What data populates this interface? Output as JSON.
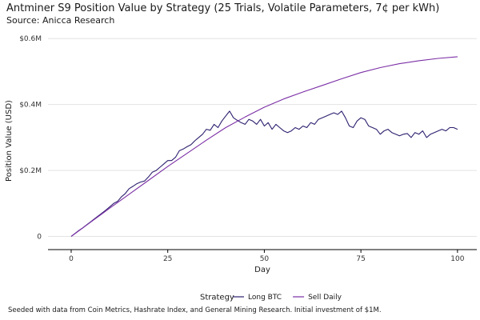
{
  "chart_data": {
    "type": "line",
    "title": "Antminer S9 Position Value by Strategy (25 Trials, Volatile Parameters, 7¢ per kWh)",
    "subtitle": "Source: Anicca Research",
    "caption": "Seeded with data from Coin Metrics, Hashrate Index, and General Mining Research. Initial investment of $1M.",
    "xlabel": "Day",
    "ylabel": "Position Value (USD)",
    "xlim": [
      -6,
      105
    ],
    "ylim": [
      -0.04,
      0.62
    ],
    "x_ticks": [
      0,
      25,
      50,
      75,
      100
    ],
    "x_tick_labels": [
      "0",
      "25",
      "50",
      "75",
      "100"
    ],
    "y_ticks": [
      0,
      0.2,
      0.4,
      0.6
    ],
    "y_tick_labels": [
      "0",
      "$0.2M",
      "$0.4M",
      "$0.6M"
    ],
    "grid": "horizontal",
    "legend_position": "bottom",
    "legend_title": "Strategy",
    "series": [
      {
        "name": "Long BTC",
        "color": "#2c1f6e",
        "x": [
          0,
          1,
          2,
          3,
          4,
          5,
          6,
          7,
          8,
          9,
          10,
          11,
          12,
          13,
          14,
          15,
          16,
          17,
          18,
          19,
          20,
          21,
          22,
          23,
          24,
          25,
          26,
          27,
          28,
          29,
          30,
          31,
          32,
          33,
          34,
          35,
          36,
          37,
          38,
          39,
          40,
          41,
          42,
          43,
          44,
          45,
          46,
          47,
          48,
          49,
          50,
          51,
          52,
          53,
          54,
          55,
          56,
          57,
          58,
          59,
          60,
          61,
          62,
          63,
          64,
          65,
          66,
          67,
          68,
          69,
          70,
          71,
          72,
          73,
          74,
          75,
          76,
          77,
          78,
          79,
          80,
          81,
          82,
          83,
          84,
          85,
          86,
          87,
          88,
          89,
          90,
          91,
          92,
          93,
          94,
          95,
          96,
          97,
          98,
          99,
          100
        ],
        "y": [
          0.0,
          0.009,
          0.018,
          0.026,
          0.035,
          0.044,
          0.053,
          0.062,
          0.071,
          0.08,
          0.09,
          0.1,
          0.106,
          0.12,
          0.13,
          0.145,
          0.152,
          0.16,
          0.165,
          0.168,
          0.18,
          0.195,
          0.2,
          0.21,
          0.22,
          0.23,
          0.23,
          0.24,
          0.26,
          0.265,
          0.272,
          0.278,
          0.29,
          0.3,
          0.31,
          0.325,
          0.322,
          0.34,
          0.33,
          0.35,
          0.365,
          0.38,
          0.36,
          0.352,
          0.345,
          0.34,
          0.355,
          0.35,
          0.34,
          0.355,
          0.335,
          0.345,
          0.325,
          0.34,
          0.33,
          0.32,
          0.315,
          0.32,
          0.33,
          0.325,
          0.335,
          0.33,
          0.345,
          0.34,
          0.355,
          0.36,
          0.365,
          0.37,
          0.375,
          0.37,
          0.38,
          0.36,
          0.335,
          0.33,
          0.35,
          0.36,
          0.355,
          0.335,
          0.33,
          0.325,
          0.31,
          0.32,
          0.325,
          0.315,
          0.31,
          0.305,
          0.31,
          0.312,
          0.3,
          0.315,
          0.31,
          0.32,
          0.3,
          0.31,
          0.315,
          0.32,
          0.325,
          0.32,
          0.33,
          0.33,
          0.325
        ]
      },
      {
        "name": "Sell Daily",
        "color": "#7b2fa6",
        "x": [
          0,
          5,
          10,
          15,
          20,
          25,
          30,
          35,
          40,
          45,
          50,
          55,
          60,
          65,
          70,
          75,
          80,
          85,
          90,
          95,
          100
        ],
        "y": [
          0.0,
          0.043,
          0.086,
          0.128,
          0.17,
          0.212,
          0.252,
          0.292,
          0.33,
          0.362,
          0.392,
          0.417,
          0.438,
          0.458,
          0.478,
          0.497,
          0.512,
          0.524,
          0.533,
          0.54,
          0.545
        ]
      }
    ]
  }
}
